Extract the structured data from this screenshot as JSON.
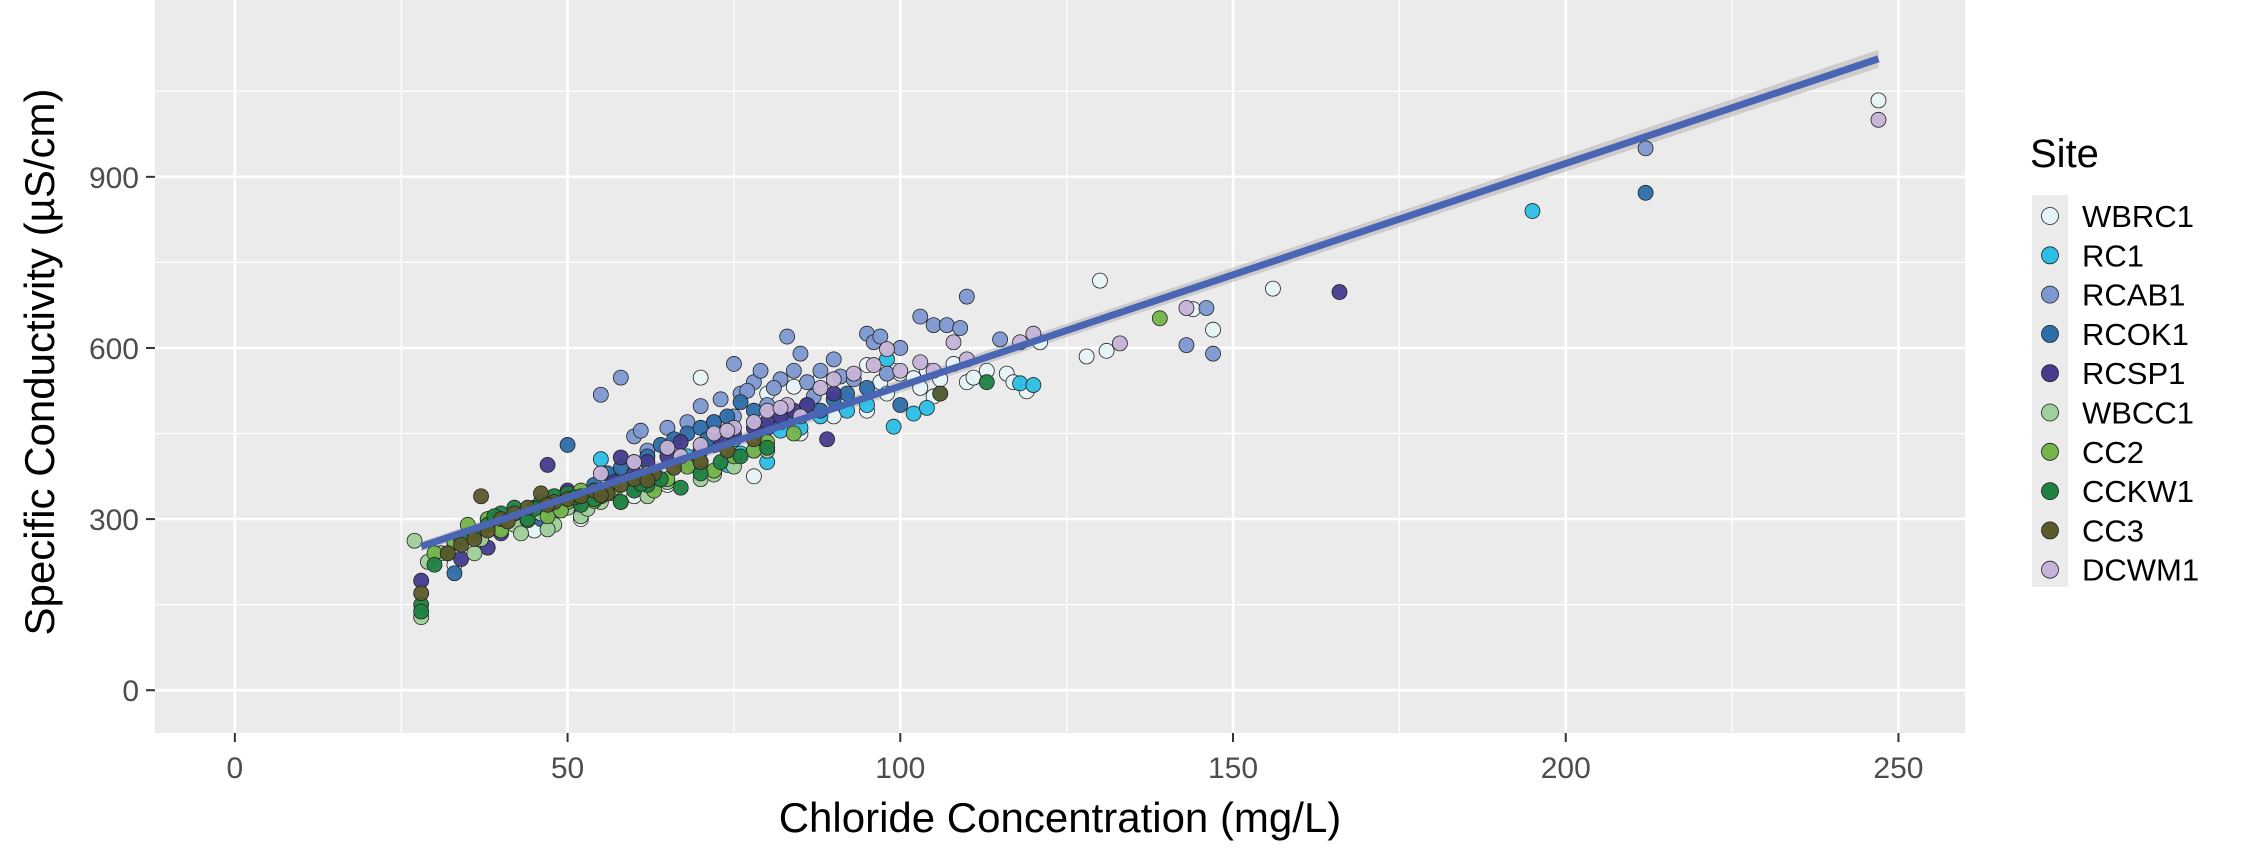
{
  "chart_data": {
    "type": "scatter",
    "xlabel": "Chloride Concentration (mg/L)",
    "ylabel": "Specific Conductivity (µS/cm)",
    "xlim": [
      -12,
      260
    ],
    "ylim": [
      -75,
      1210
    ],
    "xticks": [
      0,
      50,
      100,
      150,
      200,
      250
    ],
    "yticks": [
      0,
      300,
      600,
      900
    ],
    "grid": true,
    "legend": {
      "title": "Site",
      "position": "right"
    },
    "trendline": {
      "type": "linear",
      "x": [
        28,
        247
      ],
      "y": [
        252,
        1107
      ],
      "color": "#4a65b3",
      "ci_band": true
    },
    "series": [
      {
        "name": "WBRC1",
        "color": "#e6f3f8",
        "points": [
          [
            70,
            548
          ],
          [
            80,
            520
          ],
          [
            84,
            532
          ],
          [
            88,
            545
          ],
          [
            92,
            508
          ],
          [
            95,
            570
          ],
          [
            97,
            540
          ],
          [
            99,
            560
          ],
          [
            100,
            555
          ],
          [
            102,
            547
          ],
          [
            103,
            530
          ],
          [
            104,
            560
          ],
          [
            106,
            545
          ],
          [
            108,
            572
          ],
          [
            110,
            540
          ],
          [
            113,
            560
          ],
          [
            116,
            555
          ],
          [
            119,
            524
          ],
          [
            121,
            610
          ],
          [
            128,
            585
          ],
          [
            131,
            595
          ],
          [
            130,
            718
          ],
          [
            144,
            668
          ],
          [
            147,
            632
          ],
          [
            156,
            704
          ],
          [
            247,
            1034
          ],
          [
            78,
            375
          ],
          [
            85,
            450
          ],
          [
            90,
            480
          ],
          [
            95,
            490
          ],
          [
            33,
            220
          ],
          [
            45,
            280
          ],
          [
            52,
            300
          ],
          [
            60,
            340
          ],
          [
            65,
            360
          ],
          [
            72,
            380
          ],
          [
            98,
            520
          ],
          [
            105,
            515
          ],
          [
            111,
            548
          ],
          [
            117,
            540
          ]
        ]
      },
      {
        "name": "RC1",
        "color": "#2bbfe6",
        "points": [
          [
            55,
            405
          ],
          [
            57,
            375
          ],
          [
            63,
            380
          ],
          [
            70,
            400
          ],
          [
            72,
            430
          ],
          [
            75,
            440
          ],
          [
            76,
            415
          ],
          [
            78,
            420
          ],
          [
            80,
            400
          ],
          [
            82,
            455
          ],
          [
            85,
            460
          ],
          [
            88,
            480
          ],
          [
            92,
            490
          ],
          [
            95,
            500
          ],
          [
            98,
            580
          ],
          [
            99,
            462
          ],
          [
            102,
            485
          ],
          [
            104,
            495
          ],
          [
            106,
            520
          ],
          [
            118,
            538
          ],
          [
            120,
            535
          ],
          [
            195,
            840
          ],
          [
            68,
            410
          ],
          [
            74,
            395
          ]
        ]
      },
      {
        "name": "RCAB1",
        "color": "#7d98d0",
        "points": [
          [
            55,
            518
          ],
          [
            58,
            548
          ],
          [
            60,
            445
          ],
          [
            61,
            455
          ],
          [
            65,
            460
          ],
          [
            68,
            470
          ],
          [
            70,
            498
          ],
          [
            72,
            470
          ],
          [
            75,
            480
          ],
          [
            75,
            572
          ],
          [
            76,
            520
          ],
          [
            78,
            540
          ],
          [
            79,
            560
          ],
          [
            80,
            500
          ],
          [
            82,
            545
          ],
          [
            83,
            620
          ],
          [
            84,
            560
          ],
          [
            85,
            590
          ],
          [
            86,
            540
          ],
          [
            88,
            560
          ],
          [
            90,
            580
          ],
          [
            95,
            625
          ],
          [
            96,
            610
          ],
          [
            97,
            620
          ],
          [
            100,
            600
          ],
          [
            103,
            655
          ],
          [
            105,
            640
          ],
          [
            107,
            640
          ],
          [
            109,
            635
          ],
          [
            110,
            690
          ],
          [
            115,
            615
          ],
          [
            143,
            605
          ],
          [
            146,
            670
          ],
          [
            147,
            590
          ],
          [
            212,
            950
          ],
          [
            62,
            420
          ],
          [
            66,
            430
          ],
          [
            73,
            510
          ],
          [
            77,
            525
          ],
          [
            81,
            530
          ],
          [
            87,
            515
          ],
          [
            91,
            550
          ],
          [
            93,
            545
          ],
          [
            98,
            555
          ]
        ]
      },
      {
        "name": "RCOK1",
        "color": "#2d6da9",
        "points": [
          [
            33,
            205
          ],
          [
            46,
            300
          ],
          [
            48,
            318
          ],
          [
            50,
            430
          ],
          [
            52,
            330
          ],
          [
            54,
            360
          ],
          [
            56,
            380
          ],
          [
            58,
            390
          ],
          [
            60,
            400
          ],
          [
            62,
            410
          ],
          [
            64,
            430
          ],
          [
            66,
            440
          ],
          [
            68,
            450
          ],
          [
            70,
            460
          ],
          [
            72,
            470
          ],
          [
            74,
            480
          ],
          [
            76,
            505
          ],
          [
            78,
            490
          ],
          [
            80,
            460
          ],
          [
            82,
            470
          ],
          [
            84,
            480
          ],
          [
            86,
            500
          ],
          [
            88,
            490
          ],
          [
            90,
            510
          ],
          [
            92,
            520
          ],
          [
            95,
            530
          ],
          [
            100,
            500
          ],
          [
            212,
            872
          ],
          [
            62,
            380
          ],
          [
            67,
            400
          ],
          [
            71,
            440
          ],
          [
            79,
            450
          ]
        ]
      },
      {
        "name": "RCSP1",
        "color": "#453c8e",
        "points": [
          [
            28,
            192
          ],
          [
            34,
            230
          ],
          [
            38,
            250
          ],
          [
            40,
            275
          ],
          [
            42,
            300
          ],
          [
            47,
            395
          ],
          [
            50,
            350
          ],
          [
            52,
            320
          ],
          [
            55,
            340
          ],
          [
            57,
            365
          ],
          [
            58,
            408
          ],
          [
            60,
            380
          ],
          [
            62,
            400
          ],
          [
            65,
            410
          ],
          [
            67,
            435
          ],
          [
            70,
            420
          ],
          [
            73,
            440
          ],
          [
            75,
            450
          ],
          [
            78,
            460
          ],
          [
            80,
            470
          ],
          [
            82,
            480
          ],
          [
            84,
            490
          ],
          [
            86,
            500
          ],
          [
            89,
            440
          ],
          [
            90,
            520
          ],
          [
            166,
            698
          ],
          [
            63,
            360
          ],
          [
            69,
            395
          ]
        ]
      },
      {
        "name": "WBCC1",
        "color": "#9fcf9a",
        "points": [
          [
            27,
            262
          ],
          [
            29,
            225
          ],
          [
            31,
            240
          ],
          [
            33,
            258
          ],
          [
            35,
            272
          ],
          [
            36,
            240
          ],
          [
            38,
            300
          ],
          [
            40,
            285
          ],
          [
            42,
            290
          ],
          [
            44,
            300
          ],
          [
            46,
            310
          ],
          [
            48,
            290
          ],
          [
            50,
            320
          ],
          [
            52,
            305
          ],
          [
            55,
            330
          ],
          [
            57,
            345
          ],
          [
            60,
            355
          ],
          [
            62,
            340
          ],
          [
            65,
            365
          ],
          [
            70,
            370
          ],
          [
            72,
            378
          ],
          [
            75,
            392
          ],
          [
            80,
            420
          ],
          [
            28,
            128
          ],
          [
            37,
            265
          ],
          [
            43,
            275
          ],
          [
            47,
            282
          ],
          [
            53,
            318
          ],
          [
            58,
            330
          ]
        ]
      },
      {
        "name": "CC2",
        "color": "#74b44a",
        "points": [
          [
            30,
            240
          ],
          [
            33,
            260
          ],
          [
            35,
            290
          ],
          [
            38,
            300
          ],
          [
            40,
            280
          ],
          [
            42,
            310
          ],
          [
            45,
            320
          ],
          [
            47,
            305
          ],
          [
            48,
            340
          ],
          [
            50,
            330
          ],
          [
            52,
            350
          ],
          [
            55,
            340
          ],
          [
            57,
            355
          ],
          [
            60,
            360
          ],
          [
            62,
            380
          ],
          [
            65,
            370
          ],
          [
            68,
            392
          ],
          [
            70,
            400
          ],
          [
            72,
            385
          ],
          [
            75,
            410
          ],
          [
            78,
            420
          ],
          [
            80,
            435
          ],
          [
            84,
            450
          ],
          [
            139,
            652
          ],
          [
            44,
            298
          ],
          [
            49,
            315
          ],
          [
            54,
            332
          ],
          [
            63,
            350
          ]
        ]
      },
      {
        "name": "CCKW1",
        "color": "#1f8142",
        "points": [
          [
            28,
            150
          ],
          [
            30,
            220
          ],
          [
            32,
            240
          ],
          [
            34,
            265
          ],
          [
            36,
            275
          ],
          [
            38,
            290
          ],
          [
            40,
            310
          ],
          [
            42,
            320
          ],
          [
            44,
            300
          ],
          [
            46,
            330
          ],
          [
            48,
            340
          ],
          [
            50,
            345
          ],
          [
            52,
            325
          ],
          [
            54,
            335
          ],
          [
            56,
            345
          ],
          [
            58,
            330
          ],
          [
            60,
            350
          ],
          [
            62,
            360
          ],
          [
            64,
            370
          ],
          [
            67,
            355
          ],
          [
            70,
            380
          ],
          [
            73,
            400
          ],
          [
            76,
            410
          ],
          [
            80,
            425
          ],
          [
            113,
            540
          ],
          [
            28,
            138
          ],
          [
            39,
            305
          ],
          [
            45,
            318
          ],
          [
            51,
            338
          ],
          [
            61,
            362
          ]
        ]
      },
      {
        "name": "CC3",
        "color": "#5a5a2b",
        "points": [
          [
            28,
            170
          ],
          [
            32,
            240
          ],
          [
            34,
            255
          ],
          [
            36,
            265
          ],
          [
            37,
            340
          ],
          [
            38,
            280
          ],
          [
            40,
            300
          ],
          [
            42,
            310
          ],
          [
            44,
            320
          ],
          [
            46,
            345
          ],
          [
            48,
            330
          ],
          [
            50,
            335
          ],
          [
            52,
            340
          ],
          [
            54,
            350
          ],
          [
            56,
            345
          ],
          [
            58,
            360
          ],
          [
            60,
            370
          ],
          [
            63,
            380
          ],
          [
            66,
            390
          ],
          [
            70,
            400
          ],
          [
            74,
            420
          ],
          [
            78,
            440
          ],
          [
            106,
            520
          ],
          [
            41,
            296
          ],
          [
            47,
            325
          ],
          [
            55,
            342
          ],
          [
            62,
            368
          ]
        ]
      },
      {
        "name": "DCWM1",
        "color": "#c6b3d8",
        "points": [
          [
            55,
            380
          ],
          [
            60,
            400
          ],
          [
            65,
            425
          ],
          [
            70,
            430
          ],
          [
            72,
            450
          ],
          [
            75,
            460
          ],
          [
            78,
            470
          ],
          [
            80,
            490
          ],
          [
            83,
            500
          ],
          [
            85,
            480
          ],
          [
            88,
            530
          ],
          [
            90,
            545
          ],
          [
            93,
            555
          ],
          [
            96,
            570
          ],
          [
            98,
            598
          ],
          [
            100,
            560
          ],
          [
            103,
            575
          ],
          [
            105,
            560
          ],
          [
            108,
            610
          ],
          [
            110,
            580
          ],
          [
            118,
            610
          ],
          [
            120,
            625
          ],
          [
            133,
            608
          ],
          [
            143,
            670
          ],
          [
            247,
            1000
          ],
          [
            67,
            410
          ],
          [
            74,
            455
          ],
          [
            82,
            495
          ]
        ]
      }
    ]
  }
}
